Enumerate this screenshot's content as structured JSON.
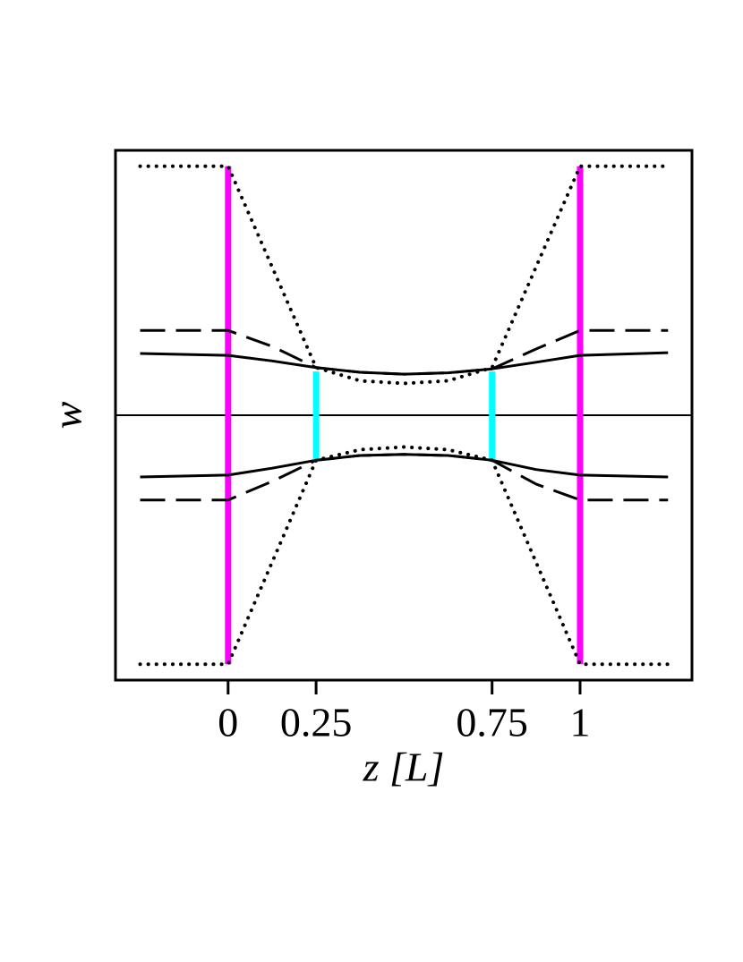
{
  "chart_data": {
    "type": "line",
    "xlabel": "z [L]",
    "ylabel": "w",
    "xlim": [
      -0.32,
      1.318
    ],
    "ylim": [
      -1,
      1
    ],
    "xticks": [
      0,
      0.25,
      0.75,
      1
    ],
    "zero_line": true,
    "series": [
      {
        "color": "#ff00ff",
        "style": "solid",
        "width": 7,
        "x": [
          0,
          0
        ],
        "values": [
          -0.94,
          0.94
        ]
      },
      {
        "color": "#ff00ff",
        "style": "solid",
        "width": 7,
        "x": [
          1,
          1
        ],
        "values": [
          -0.94,
          0.94
        ]
      },
      {
        "color": "#00ffff",
        "style": "solid",
        "width": 7,
        "x": [
          0.25,
          0.25
        ],
        "values": [
          -0.165,
          0.165
        ]
      },
      {
        "color": "#00ffff",
        "style": "solid",
        "width": 7,
        "x": [
          0.75,
          0.75
        ],
        "values": [
          -0.165,
          0.165
        ]
      },
      {
        "color": "#000000",
        "style": "solid",
        "width": 3,
        "x": [
          -0.25,
          0,
          0.125,
          0.25,
          0.375,
          0.5,
          0.625,
          0.75,
          0.875,
          1,
          1.25
        ],
        "values": [
          0.233,
          0.226,
          0.205,
          0.18,
          0.162,
          0.155,
          0.16,
          0.175,
          0.2,
          0.226,
          0.236
        ]
      },
      {
        "color": "#000000",
        "style": "solid",
        "width": 3,
        "x": [
          -0.25,
          0,
          0.125,
          0.25,
          0.375,
          0.5,
          0.625,
          0.75,
          0.875,
          1,
          1.25
        ],
        "values": [
          -0.233,
          -0.226,
          -0.2,
          -0.17,
          -0.152,
          -0.148,
          -0.152,
          -0.17,
          -0.205,
          -0.226,
          -0.233
        ]
      },
      {
        "color": "#000000",
        "style": "dashed",
        "width": 3,
        "x": [
          -0.25,
          0,
          0.125,
          0.25,
          0.375,
          0.5,
          0.625,
          0.75,
          0.875,
          1,
          1.25
        ],
        "values": [
          0.32,
          0.32,
          0.26,
          0.18,
          0.162,
          0.155,
          0.16,
          0.175,
          0.25,
          0.32,
          0.32
        ]
      },
      {
        "color": "#000000",
        "style": "dashed",
        "width": 3,
        "x": [
          -0.25,
          0,
          0.125,
          0.25,
          0.375,
          0.5,
          0.625,
          0.75,
          0.875,
          1,
          1.25
        ],
        "values": [
          -0.32,
          -0.32,
          -0.25,
          -0.17,
          -0.152,
          -0.148,
          -0.152,
          -0.17,
          -0.26,
          -0.32,
          -0.32
        ]
      },
      {
        "color": "#000000",
        "style": "dotted",
        "width": 4,
        "x": [
          -0.25,
          0,
          0.25,
          0.375,
          0.5,
          0.625,
          0.75,
          1,
          1.25
        ],
        "values": [
          0.94,
          0.94,
          0.18,
          0.13,
          0.12,
          0.13,
          0.18,
          0.94,
          0.94
        ]
      },
      {
        "color": "#000000",
        "style": "dotted",
        "width": 4,
        "x": [
          -0.25,
          0,
          0.25,
          0.375,
          0.5,
          0.625,
          0.75,
          1,
          1.25
        ],
        "values": [
          -0.94,
          -0.94,
          -0.17,
          -0.13,
          -0.12,
          -0.13,
          -0.17,
          -0.94,
          -0.94
        ]
      }
    ]
  }
}
